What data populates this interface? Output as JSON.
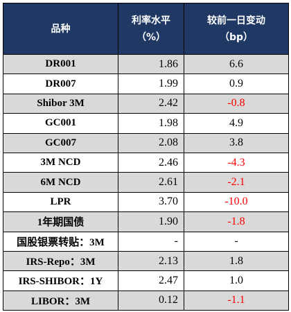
{
  "table": {
    "header": [
      [
        "品种"
      ],
      [
        "利率水平",
        "（%）"
      ],
      [
        "较前一日变动",
        "（bp）"
      ]
    ],
    "rows": [
      [
        "DR001",
        "1.86",
        "6.6"
      ],
      [
        "DR007",
        "1.99",
        "0.9"
      ],
      [
        "Shibor 3M",
        "2.42",
        "-0.8"
      ],
      [
        "GC001",
        "1.98",
        "4.9"
      ],
      [
        "GC007",
        "2.08",
        "3.8"
      ],
      [
        "3M NCD",
        "2.46",
        "-4.3"
      ],
      [
        "6M NCD",
        "2.61",
        "-2.1"
      ],
      [
        "LPR",
        "3.70",
        "-10.0"
      ],
      [
        "1年期国债",
        "1.90",
        "-1.8"
      ],
      [
        "国股银票转贴：3M",
        "-",
        "-"
      ],
      [
        "IRS-Repo：3M",
        "2.13",
        "1.8"
      ],
      [
        "IRS-SHIBOR：1Y",
        "2.47",
        "1.0"
      ],
      [
        "LIBOR：3M",
        "0.12",
        "-1.1"
      ]
    ]
  }
}
